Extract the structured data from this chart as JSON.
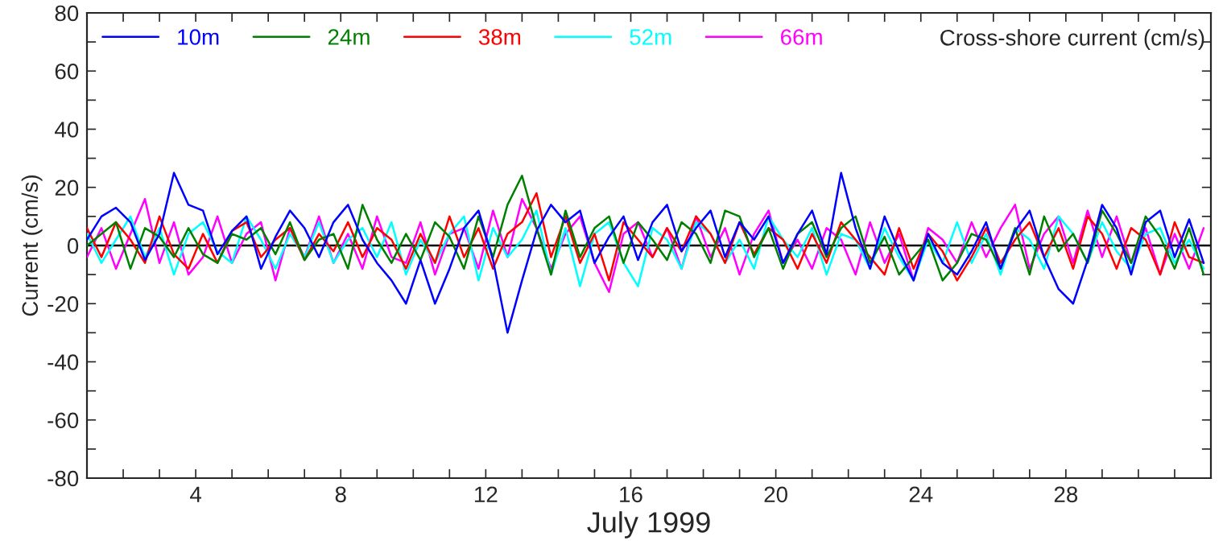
{
  "chart_data": {
    "type": "line",
    "title": "Cross-shore current (cm/s)",
    "xlabel": "July 1999",
    "ylabel": "Current (cm/s)",
    "x": [
      1.0,
      1.4,
      1.8,
      2.2,
      2.6,
      3.0,
      3.4,
      3.8,
      4.2,
      4.6,
      5.0,
      5.4,
      5.8,
      6.2,
      6.6,
      7.0,
      7.4,
      7.8,
      8.2,
      8.6,
      9.0,
      9.4,
      9.8,
      10.2,
      10.6,
      11.0,
      11.4,
      11.8,
      12.2,
      12.6,
      13.0,
      13.4,
      13.8,
      14.2,
      14.6,
      15.0,
      15.4,
      15.8,
      16.2,
      16.6,
      17.0,
      17.4,
      17.8,
      18.2,
      18.6,
      19.0,
      19.4,
      19.8,
      20.2,
      20.6,
      21.0,
      21.4,
      21.8,
      22.2,
      22.6,
      23.0,
      23.4,
      23.8,
      24.2,
      24.6,
      25.0,
      25.4,
      25.8,
      26.2,
      26.6,
      27.0,
      27.4,
      27.8,
      28.2,
      28.6,
      29.0,
      29.4,
      29.8,
      30.2,
      30.6,
      31.0,
      31.4,
      31.8
    ],
    "series": [
      {
        "name": "10m",
        "color": "#0000ff",
        "values": [
          2,
          10,
          13,
          8,
          -5,
          4,
          25,
          14,
          12,
          -3,
          5,
          10,
          -8,
          3,
          12,
          6,
          -4,
          8,
          14,
          2,
          -6,
          -12,
          -20,
          -5,
          -20,
          -8,
          6,
          12,
          -5,
          -30,
          -12,
          5,
          14,
          8,
          12,
          -6,
          3,
          10,
          -5,
          8,
          14,
          -2,
          6,
          12,
          -4,
          8,
          2,
          10,
          -6,
          4,
          12,
          -3,
          25,
          6,
          -8,
          10,
          -2,
          -12,
          4,
          -6,
          -10,
          -2,
          8,
          -8,
          5,
          12,
          -4,
          -15,
          -20,
          -5,
          14,
          6,
          -10,
          8,
          12,
          -4,
          9,
          -6
        ]
      },
      {
        "name": "24m",
        "color": "#008000",
        "values": [
          0,
          4,
          8,
          -8,
          6,
          3,
          -4,
          6,
          -3,
          -6,
          4,
          2,
          6,
          -3,
          8,
          -5,
          2,
          4,
          -8,
          14,
          2,
          -6,
          4,
          -5,
          8,
          3,
          -8,
          10,
          -4,
          14,
          24,
          6,
          -10,
          12,
          -4,
          6,
          10,
          -6,
          8,
          2,
          -5,
          8,
          4,
          -6,
          12,
          10,
          -4,
          6,
          -8,
          4,
          8,
          -4,
          6,
          10,
          -6,
          3,
          -10,
          -4,
          2,
          -12,
          -6,
          4,
          2,
          -8,
          6,
          -10,
          10,
          -2,
          4,
          -6,
          12,
          4,
          -6,
          10,
          3,
          -8,
          6,
          -10
        ]
      },
      {
        "name": "38m",
        "color": "#ff0000",
        "values": [
          6,
          -4,
          8,
          2,
          -6,
          10,
          -3,
          -8,
          4,
          -6,
          5,
          8,
          -4,
          2,
          6,
          -5,
          4,
          -2,
          8,
          -4,
          6,
          2,
          -8,
          4,
          -6,
          10,
          -4,
          6,
          -8,
          4,
          8,
          18,
          -4,
          10,
          -6,
          4,
          -12,
          8,
          2,
          -4,
          6,
          -2,
          10,
          4,
          -6,
          8,
          -3,
          6,
          2,
          -8,
          4,
          -6,
          8,
          2,
          -4,
          -10,
          6,
          -8,
          4,
          -2,
          -12,
          -4,
          6,
          -6,
          2,
          8,
          -4,
          6,
          -8,
          10,
          4,
          -8,
          6,
          2,
          -10,
          8,
          -4,
          -6
        ]
      },
      {
        "name": "52m",
        "color": "#00ffff",
        "values": [
          4,
          -6,
          2,
          10,
          -4,
          6,
          -10,
          4,
          8,
          -2,
          -6,
          10,
          2,
          -8,
          4,
          -4,
          8,
          -6,
          2,
          6,
          -4,
          8,
          -10,
          2,
          -6,
          4,
          10,
          -12,
          6,
          -4,
          2,
          12,
          -10,
          6,
          -14,
          4,
          8,
          -6,
          -14,
          6,
          2,
          -8,
          8,
          4,
          -6,
          2,
          -8,
          10,
          2,
          -4,
          6,
          -10,
          4,
          2,
          -8,
          6,
          -4,
          -12,
          2,
          -6,
          8,
          -6,
          4,
          -10,
          6,
          2,
          -8,
          10,
          4,
          -6,
          8,
          -2,
          -8,
          4,
          6,
          -6,
          2,
          -8
        ]
      },
      {
        "name": "66m",
        "color": "#ff00ff",
        "values": [
          -4,
          6,
          -8,
          4,
          16,
          -6,
          8,
          -10,
          -4,
          10,
          -6,
          4,
          8,
          -12,
          6,
          -4,
          10,
          -6,
          4,
          -8,
          10,
          -4,
          -6,
          8,
          -10,
          4,
          6,
          -8,
          12,
          -4,
          16,
          6,
          -8,
          4,
          10,
          -6,
          -16,
          4,
          8,
          -4,
          6,
          -8,
          10,
          -4,
          6,
          -10,
          4,
          12,
          -6,
          2,
          -8,
          6,
          2,
          -10,
          8,
          -6,
          4,
          -12,
          6,
          2,
          -6,
          8,
          -4,
          6,
          14,
          -8,
          4,
          10,
          -6,
          12,
          -4,
          10,
          -6,
          6,
          -10,
          4,
          -8,
          6
        ]
      }
    ],
    "xlim": [
      1,
      32
    ],
    "xticks": [
      {
        "value": 2,
        "label": null
      },
      {
        "value": 3,
        "label": null
      },
      4,
      {
        "value": 5,
        "label": null
      },
      {
        "value": 6,
        "label": null
      },
      {
        "value": 7,
        "label": null
      },
      8,
      {
        "value": 9,
        "label": null
      },
      {
        "value": 10,
        "label": null
      },
      {
        "value": 11,
        "label": null
      },
      12,
      {
        "value": 13,
        "label": null
      },
      {
        "value": 14,
        "label": null
      },
      {
        "value": 15,
        "label": null
      },
      16,
      {
        "value": 17,
        "label": null
      },
      {
        "value": 18,
        "label": null
      },
      {
        "value": 19,
        "label": null
      },
      20,
      {
        "value": 21,
        "label": null
      },
      {
        "value": 22,
        "label": null
      },
      {
        "value": 23,
        "label": null
      },
      24,
      {
        "value": 25,
        "label": null
      },
      {
        "value": 26,
        "label": null
      },
      {
        "value": 27,
        "label": null
      },
      28,
      {
        "value": 29,
        "label": null
      },
      {
        "value": 30,
        "label": null
      },
      {
        "value": 31,
        "label": null
      }
    ],
    "ylim": [
      -80,
      80
    ],
    "yticks": [
      -80,
      {
        "value": -70,
        "label": null
      },
      -60,
      {
        "value": -50,
        "label": null
      },
      -40,
      {
        "value": -30,
        "label": null
      },
      -20,
      {
        "value": -10,
        "label": null
      },
      0,
      {
        "value": 10,
        "label": null
      },
      20,
      {
        "value": 30,
        "label": null
      },
      40,
      {
        "value": 50,
        "label": null
      },
      60,
      {
        "value": 70,
        "label": null
      },
      80
    ],
    "ref_lines": [
      {
        "axis": "y",
        "value": 0,
        "color": "#000000"
      }
    ],
    "legend": "top left",
    "grid": false,
    "marker": "none",
    "line_style": "solid"
  }
}
